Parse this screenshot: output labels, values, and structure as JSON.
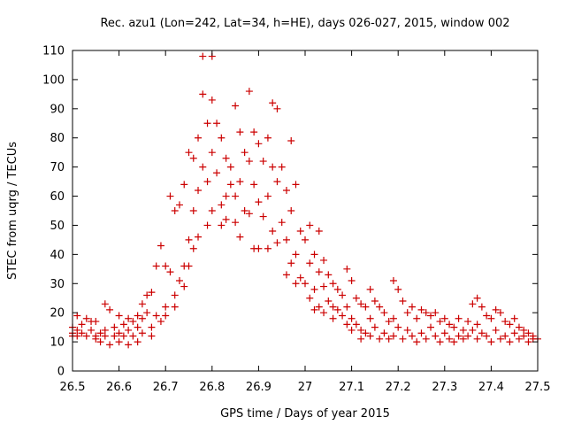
{
  "chart_data": {
    "type": "scatter",
    "title": "Rec. azu1 (Lon=242, Lat=34, h=HE), days 026-027, 2015, window 002",
    "xlabel": "GPS time / Days of year 2015",
    "ylabel": "STEC from uqrg / TECUs",
    "xlim": [
      26.5,
      27.5
    ],
    "ylim": [
      0,
      110
    ],
    "xticks": [
      26.5,
      26.6,
      26.7,
      26.8,
      26.9,
      27,
      27.1,
      27.2,
      27.3,
      27.4,
      27.5
    ],
    "xtick_labels": [
      "26.5",
      "26.6",
      "26.7",
      "26.8",
      "26.9",
      "27",
      "27.1",
      "27.2",
      "27.3",
      "27.4",
      "27.5"
    ],
    "yticks": [
      0,
      10,
      20,
      30,
      40,
      50,
      60,
      70,
      80,
      90,
      100,
      110
    ],
    "ytick_labels": [
      "0",
      "10",
      "20",
      "30",
      "40",
      "50",
      "60",
      "70",
      "80",
      "90",
      "100",
      "110"
    ],
    "grid": false,
    "marker": "+",
    "marker_color": "#cc0000",
    "series": [
      {
        "name": "STEC",
        "points": [
          [
            26.5,
            15
          ],
          [
            26.5,
            13
          ],
          [
            26.5,
            12
          ],
          [
            26.51,
            19
          ],
          [
            26.51,
            14
          ],
          [
            26.51,
            12
          ],
          [
            26.52,
            16
          ],
          [
            26.52,
            13
          ],
          [
            26.53,
            18
          ],
          [
            26.53,
            12
          ],
          [
            26.54,
            17
          ],
          [
            26.54,
            14
          ],
          [
            26.55,
            17
          ],
          [
            26.55,
            12
          ],
          [
            26.55,
            11
          ],
          [
            26.56,
            13
          ],
          [
            26.56,
            10
          ],
          [
            26.57,
            23
          ],
          [
            26.57,
            14
          ],
          [
            26.57,
            12
          ],
          [
            26.58,
            21
          ],
          [
            26.58,
            9
          ],
          [
            26.59,
            15
          ],
          [
            26.59,
            12
          ],
          [
            26.6,
            19
          ],
          [
            26.6,
            13
          ],
          [
            26.6,
            10
          ],
          [
            26.61,
            16
          ],
          [
            26.61,
            12
          ],
          [
            26.62,
            18
          ],
          [
            26.62,
            14
          ],
          [
            26.62,
            9
          ],
          [
            26.63,
            17
          ],
          [
            26.63,
            12
          ],
          [
            26.64,
            19
          ],
          [
            26.64,
            15
          ],
          [
            26.64,
            10
          ],
          [
            26.65,
            23
          ],
          [
            26.65,
            18
          ],
          [
            26.65,
            13
          ],
          [
            26.66,
            26
          ],
          [
            26.66,
            20
          ],
          [
            26.67,
            27
          ],
          [
            26.67,
            15
          ],
          [
            26.67,
            12
          ],
          [
            26.68,
            36
          ],
          [
            26.68,
            19
          ],
          [
            26.69,
            43
          ],
          [
            26.69,
            17
          ],
          [
            26.7,
            36
          ],
          [
            26.7,
            22
          ],
          [
            26.7,
            19
          ],
          [
            26.71,
            60
          ],
          [
            26.71,
            34
          ],
          [
            26.72,
            55
          ],
          [
            26.72,
            26
          ],
          [
            26.72,
            22
          ],
          [
            26.73,
            57
          ],
          [
            26.73,
            31
          ],
          [
            26.74,
            64
          ],
          [
            26.74,
            36
          ],
          [
            26.74,
            29
          ],
          [
            26.75,
            75
          ],
          [
            26.75,
            45
          ],
          [
            26.75,
            36
          ],
          [
            26.76,
            73
          ],
          [
            26.76,
            55
          ],
          [
            26.76,
            42
          ],
          [
            26.77,
            80
          ],
          [
            26.77,
            62
          ],
          [
            26.77,
            46
          ],
          [
            26.78,
            108
          ],
          [
            26.78,
            95
          ],
          [
            26.78,
            70
          ],
          [
            26.79,
            85
          ],
          [
            26.79,
            65
          ],
          [
            26.79,
            50
          ],
          [
            26.8,
            108
          ],
          [
            26.8,
            93
          ],
          [
            26.8,
            75
          ],
          [
            26.8,
            55
          ],
          [
            26.81,
            85
          ],
          [
            26.81,
            68
          ],
          [
            26.82,
            80
          ],
          [
            26.82,
            57
          ],
          [
            26.82,
            50
          ],
          [
            26.83,
            73
          ],
          [
            26.83,
            60
          ],
          [
            26.83,
            52
          ],
          [
            26.84,
            70
          ],
          [
            26.84,
            64
          ],
          [
            26.85,
            91
          ],
          [
            26.85,
            60
          ],
          [
            26.85,
            51
          ],
          [
            26.86,
            82
          ],
          [
            26.86,
            65
          ],
          [
            26.86,
            46
          ],
          [
            26.87,
            75
          ],
          [
            26.87,
            55
          ],
          [
            26.88,
            96
          ],
          [
            26.88,
            72
          ],
          [
            26.88,
            54
          ],
          [
            26.89,
            82
          ],
          [
            26.89,
            64
          ],
          [
            26.89,
            42
          ],
          [
            26.9,
            78
          ],
          [
            26.9,
            58
          ],
          [
            26.9,
            42
          ],
          [
            26.91,
            72
          ],
          [
            26.91,
            53
          ],
          [
            26.92,
            80
          ],
          [
            26.92,
            60
          ],
          [
            26.92,
            42
          ],
          [
            26.93,
            92
          ],
          [
            26.93,
            70
          ],
          [
            26.93,
            48
          ],
          [
            26.94,
            90
          ],
          [
            26.94,
            65
          ],
          [
            26.94,
            44
          ],
          [
            26.95,
            70
          ],
          [
            26.95,
            51
          ],
          [
            26.96,
            62
          ],
          [
            26.96,
            45
          ],
          [
            26.96,
            33
          ],
          [
            26.97,
            79
          ],
          [
            26.97,
            55
          ],
          [
            26.97,
            37
          ],
          [
            26.98,
            64
          ],
          [
            26.98,
            40
          ],
          [
            26.98,
            30
          ],
          [
            26.99,
            48
          ],
          [
            26.99,
            32
          ],
          [
            27.0,
            45
          ],
          [
            27.0,
            30
          ],
          [
            27.01,
            50
          ],
          [
            27.01,
            37
          ],
          [
            27.01,
            25
          ],
          [
            27.02,
            40
          ],
          [
            27.02,
            28
          ],
          [
            27.02,
            21
          ],
          [
            27.03,
            48
          ],
          [
            27.03,
            34
          ],
          [
            27.03,
            22
          ],
          [
            27.04,
            38
          ],
          [
            27.04,
            29
          ],
          [
            27.04,
            20
          ],
          [
            27.05,
            33
          ],
          [
            27.05,
            24
          ],
          [
            27.06,
            30
          ],
          [
            27.06,
            22
          ],
          [
            27.06,
            18
          ],
          [
            27.07,
            28
          ],
          [
            27.07,
            21
          ],
          [
            27.08,
            26
          ],
          [
            27.08,
            19
          ],
          [
            27.09,
            35
          ],
          [
            27.09,
            22
          ],
          [
            27.09,
            16
          ],
          [
            27.1,
            31
          ],
          [
            27.1,
            18
          ],
          [
            27.1,
            14
          ],
          [
            27.11,
            25
          ],
          [
            27.11,
            16
          ],
          [
            27.12,
            23
          ],
          [
            27.12,
            14
          ],
          [
            27.12,
            11
          ],
          [
            27.13,
            22
          ],
          [
            27.13,
            13
          ],
          [
            27.14,
            28
          ],
          [
            27.14,
            18
          ],
          [
            27.14,
            12
          ],
          [
            27.15,
            24
          ],
          [
            27.15,
            15
          ],
          [
            27.16,
            22
          ],
          [
            27.16,
            11
          ],
          [
            27.17,
            20
          ],
          [
            27.17,
            13
          ],
          [
            27.18,
            17
          ],
          [
            27.18,
            11
          ],
          [
            27.19,
            31
          ],
          [
            27.19,
            18
          ],
          [
            27.19,
            12
          ],
          [
            27.2,
            28
          ],
          [
            27.2,
            15
          ],
          [
            27.21,
            24
          ],
          [
            27.21,
            11
          ],
          [
            27.22,
            20
          ],
          [
            27.22,
            14
          ],
          [
            27.23,
            22
          ],
          [
            27.23,
            12
          ],
          [
            27.24,
            18
          ],
          [
            27.24,
            10
          ],
          [
            27.25,
            21
          ],
          [
            27.25,
            13
          ],
          [
            27.26,
            20
          ],
          [
            27.26,
            11
          ],
          [
            27.27,
            19
          ],
          [
            27.27,
            15
          ],
          [
            27.28,
            20
          ],
          [
            27.28,
            12
          ],
          [
            27.29,
            17
          ],
          [
            27.29,
            10
          ],
          [
            27.3,
            18
          ],
          [
            27.3,
            13
          ],
          [
            27.31,
            16
          ],
          [
            27.31,
            11
          ],
          [
            27.32,
            15
          ],
          [
            27.32,
            10
          ],
          [
            27.33,
            18
          ],
          [
            27.33,
            12
          ],
          [
            27.34,
            14
          ],
          [
            27.34,
            11
          ],
          [
            27.35,
            17
          ],
          [
            27.35,
            12
          ],
          [
            27.36,
            23
          ],
          [
            27.36,
            14
          ],
          [
            27.37,
            25
          ],
          [
            27.37,
            16
          ],
          [
            27.37,
            11
          ],
          [
            27.38,
            22
          ],
          [
            27.38,
            13
          ],
          [
            27.39,
            19
          ],
          [
            27.39,
            12
          ],
          [
            27.4,
            18
          ],
          [
            27.4,
            10
          ],
          [
            27.41,
            21
          ],
          [
            27.41,
            14
          ],
          [
            27.42,
            20
          ],
          [
            27.42,
            11
          ],
          [
            27.43,
            17
          ],
          [
            27.43,
            12
          ],
          [
            27.44,
            16
          ],
          [
            27.44,
            10
          ],
          [
            27.45,
            18
          ],
          [
            27.45,
            13
          ],
          [
            27.46,
            15
          ],
          [
            27.46,
            11
          ],
          [
            27.47,
            14
          ],
          [
            27.47,
            12
          ],
          [
            27.48,
            13
          ],
          [
            27.48,
            10
          ],
          [
            27.49,
            12
          ],
          [
            27.49,
            11
          ],
          [
            27.5,
            11
          ]
        ]
      }
    ]
  }
}
